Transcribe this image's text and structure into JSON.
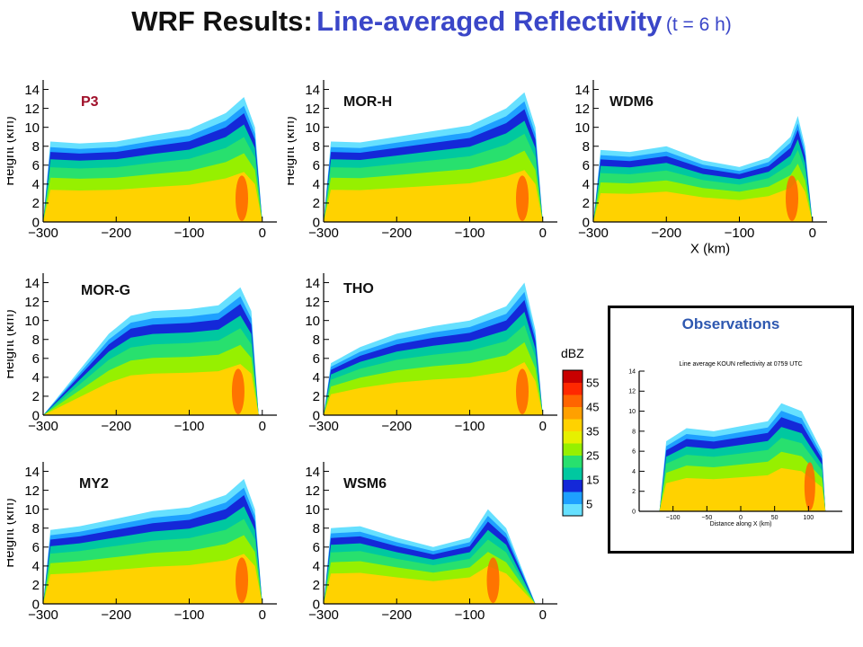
{
  "title": {
    "part1": "WRF Results:",
    "part2": "Line-averaged Reflectivity",
    "part3": "(t = 6 h)"
  },
  "colors": {
    "title_dark": "#111111",
    "title_blue": "#3a46c8",
    "obs_title": "#2e58b0",
    "p3_label": "#a0102a"
  },
  "chart_data": [
    {
      "type": "heatmap",
      "panel_label": "P3",
      "xlabel": "",
      "ylabel": "Height (km)",
      "xlim": [
        -300,
        20
      ],
      "ylim": [
        0,
        15
      ],
      "x_ticks": [
        "−300",
        "−200",
        "−100",
        "0"
      ],
      "y_ticks": [
        "0",
        "2",
        "4",
        "6",
        "8",
        "10",
        "12",
        "14"
      ],
      "echo_top_km": [
        [
          -300,
          0
        ],
        [
          -290,
          8.5
        ],
        [
          -250,
          8.3
        ],
        [
          -200,
          8.5
        ],
        [
          -150,
          9.2
        ],
        [
          -100,
          9.8
        ],
        [
          -50,
          11.5
        ],
        [
          -25,
          13.2
        ],
        [
          -10,
          10
        ],
        [
          0,
          0
        ]
      ]
    },
    {
      "type": "heatmap",
      "panel_label": "MOR-H",
      "xlabel": "",
      "ylabel": "Height (km)",
      "xlim": [
        -300,
        20
      ],
      "ylim": [
        0,
        15
      ],
      "x_ticks": [
        "−300",
        "−200",
        "−100",
        "0"
      ],
      "y_ticks": [
        "0",
        "2",
        "4",
        "6",
        "8",
        "10",
        "12",
        "14"
      ],
      "echo_top_km": [
        [
          -300,
          0
        ],
        [
          -290,
          8.5
        ],
        [
          -250,
          8.4
        ],
        [
          -200,
          9
        ],
        [
          -150,
          9.6
        ],
        [
          -100,
          10.2
        ],
        [
          -50,
          12
        ],
        [
          -25,
          13.7
        ],
        [
          -10,
          10
        ],
        [
          0,
          0
        ]
      ]
    },
    {
      "type": "heatmap",
      "panel_label": "WDM6",
      "xlabel": "X (km)",
      "ylabel": "",
      "xlim": [
        -300,
        20
      ],
      "ylim": [
        0,
        15
      ],
      "x_ticks": [
        "−300",
        "−200",
        "−100",
        "0"
      ],
      "y_ticks": [
        "0",
        "2",
        "4",
        "6",
        "8",
        "10",
        "12",
        "14"
      ],
      "echo_top_km": [
        [
          -300,
          0
        ],
        [
          -290,
          7.6
        ],
        [
          -250,
          7.4
        ],
        [
          -200,
          8
        ],
        [
          -150,
          6.5
        ],
        [
          -100,
          5.8
        ],
        [
          -60,
          6.8
        ],
        [
          -30,
          9
        ],
        [
          -20,
          11.2
        ],
        [
          -10,
          8
        ],
        [
          0,
          0
        ]
      ]
    },
    {
      "type": "heatmap",
      "panel_label": "MOR-G",
      "xlabel": "",
      "ylabel": "Height (km)",
      "xlim": [
        -300,
        20
      ],
      "ylim": [
        0,
        15
      ],
      "x_ticks": [
        "−300",
        "−200",
        "−100",
        "0"
      ],
      "y_ticks": [
        "0",
        "2",
        "4",
        "6",
        "8",
        "10",
        "12",
        "14"
      ],
      "echo_top_km": [
        [
          -300,
          0
        ],
        [
          -210,
          8.6
        ],
        [
          -180,
          10.5
        ],
        [
          -150,
          11
        ],
        [
          -100,
          11.2
        ],
        [
          -60,
          11.6
        ],
        [
          -30,
          13.5
        ],
        [
          -15,
          11
        ],
        [
          -5,
          0
        ]
      ]
    },
    {
      "type": "heatmap",
      "panel_label": "THO",
      "xlabel": "",
      "ylabel": "",
      "xlim": [
        -300,
        20
      ],
      "ylim": [
        0,
        15
      ],
      "x_ticks": [
        "−300",
        "−200",
        "−100",
        "0"
      ],
      "y_ticks": [
        "0",
        "2",
        "4",
        "6",
        "8",
        "10",
        "12",
        "14"
      ],
      "echo_top_km": [
        [
          -300,
          0
        ],
        [
          -290,
          5.5
        ],
        [
          -250,
          7.2
        ],
        [
          -200,
          8.6
        ],
        [
          -150,
          9.4
        ],
        [
          -100,
          10
        ],
        [
          -50,
          11.5
        ],
        [
          -25,
          14
        ],
        [
          -10,
          9
        ],
        [
          0,
          0
        ]
      ]
    },
    {
      "type": "heatmap",
      "panel_label": "MY2",
      "xlabel": "",
      "ylabel": "Height (km)",
      "xlim": [
        -300,
        20
      ],
      "ylim": [
        0,
        15
      ],
      "x_ticks": [
        "−300",
        "−200",
        "−100",
        "0"
      ],
      "y_ticks": [
        "0",
        "2",
        "4",
        "6",
        "8",
        "10",
        "12",
        "14"
      ],
      "echo_top_km": [
        [
          -300,
          0
        ],
        [
          -290,
          7.8
        ],
        [
          -250,
          8.2
        ],
        [
          -200,
          9
        ],
        [
          -150,
          9.8
        ],
        [
          -100,
          10.2
        ],
        [
          -50,
          11.5
        ],
        [
          -25,
          13.2
        ],
        [
          -10,
          10
        ],
        [
          0,
          0
        ]
      ]
    },
    {
      "type": "heatmap",
      "panel_label": "WSM6",
      "xlabel": "",
      "ylabel": "",
      "xlim": [
        -300,
        20
      ],
      "ylim": [
        0,
        15
      ],
      "x_ticks": [
        "−300",
        "−200",
        "−100",
        "0"
      ],
      "y_ticks": [
        "0",
        "2",
        "4",
        "6",
        "8",
        "10",
        "12",
        "14"
      ],
      "echo_top_km": [
        [
          -300,
          0
        ],
        [
          -290,
          8
        ],
        [
          -250,
          8.2
        ],
        [
          -200,
          7
        ],
        [
          -150,
          6
        ],
        [
          -100,
          7
        ],
        [
          -75,
          10
        ],
        [
          -50,
          8
        ],
        [
          -10,
          0
        ]
      ]
    },
    {
      "type": "heatmap",
      "panel_label": "Observations",
      "title": "Line average KOUN reflectivity at 0759 UTC",
      "xlabel": "Distance along X (km)",
      "ylabel": "",
      "xlim": [
        -150,
        150
      ],
      "ylim": [
        0,
        14
      ],
      "x_ticks": [
        "−100",
        "−50",
        "0",
        "50",
        "100"
      ],
      "y_ticks": [
        "0",
        "2",
        "4",
        "6",
        "8",
        "10",
        "12",
        "14"
      ],
      "echo_top_km": [
        [
          -120,
          0
        ],
        [
          -110,
          7
        ],
        [
          -80,
          8.3
        ],
        [
          -40,
          8
        ],
        [
          0,
          8.5
        ],
        [
          40,
          9
        ],
        [
          60,
          10.8
        ],
        [
          90,
          10
        ],
        [
          120,
          6
        ],
        [
          125,
          0
        ]
      ]
    },
    {
      "type": "colorbar",
      "label": "dBZ",
      "ticks": [
        "5",
        "15",
        "25",
        "35",
        "45",
        "55"
      ],
      "range": [
        0,
        60
      ],
      "color_levels": [
        "#66e0ff",
        "#1ea0ff",
        "#1428d8",
        "#00c8a0",
        "#28e06e",
        "#96f000",
        "#e6f000",
        "#ffd200",
        "#ffa000",
        "#ff6400",
        "#ff2800",
        "#c80000"
      ]
    }
  ]
}
